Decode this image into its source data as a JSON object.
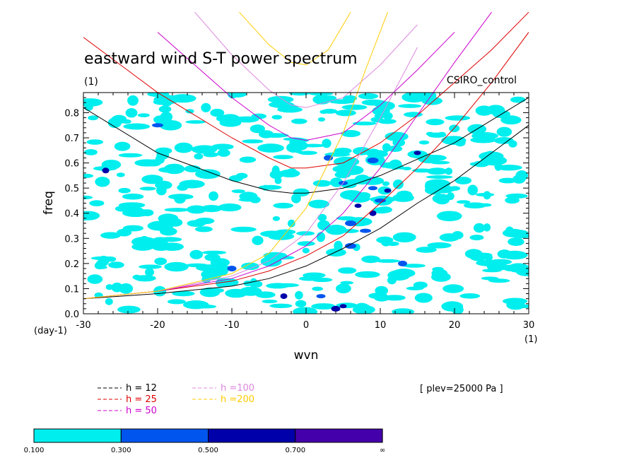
{
  "chart_data": {
    "type": "heatmap",
    "title": "eastward wind S-T power spectrum",
    "subtitle_left": "(1)",
    "subtitle_right": "CSIRO_control",
    "xlabel": "wvn",
    "ylabel": "freq",
    "x_unit_label": "(1)",
    "y_unit_label": "(day-1)",
    "xlim": [
      -30,
      30
    ],
    "ylim": [
      0.0,
      0.88
    ],
    "x_ticks": [
      -30,
      -20,
      -10,
      0,
      10,
      20,
      30
    ],
    "x_tick_labels": [
      "-30",
      "-20",
      "-10",
      "0",
      "10",
      "20",
      "30"
    ],
    "y_ticks": [
      0.0,
      0.1,
      0.2,
      0.3,
      0.4,
      0.5,
      0.6,
      0.7,
      0.8
    ],
    "y_tick_labels": [
      "0.0",
      "0.1",
      "0.2",
      "0.3",
      "0.4",
      "0.5",
      "0.6",
      "0.7",
      "0.8"
    ],
    "plev_label": "[ plev=25000 Pa ]",
    "contour_levels": [
      {
        "label": "0.100",
        "color": "#00eeee"
      },
      {
        "label": "0.300",
        "color": "#0055ee"
      },
      {
        "label": "0.500",
        "color": "#0000aa"
      },
      {
        "label": "0.700",
        "color": "#4400aa"
      },
      {
        "label": "∞",
        "color": ""
      }
    ],
    "series": [
      {
        "name": "h = 12",
        "color": "#000000",
        "h": 12,
        "symmetric": {
          "x": [
            -30,
            -20,
            -10,
            -5,
            -2,
            0,
            5,
            10,
            20,
            30
          ],
          "y": [
            0.82,
            0.64,
            0.53,
            0.49,
            0.48,
            0.48,
            0.5,
            0.55,
            0.68,
            0.86
          ]
        },
        "kelvin": {
          "x": [
            -30,
            -20,
            -10,
            -5,
            0,
            5,
            10,
            15,
            20,
            25,
            30
          ],
          "y": [
            0.06,
            0.08,
            0.11,
            0.14,
            0.19,
            0.26,
            0.34,
            0.44,
            0.53,
            0.64,
            0.75
          ]
        }
      },
      {
        "name": "h = 25",
        "color": "#dd0000",
        "h": 25,
        "symmetric": {
          "x": [
            -30,
            -25,
            -20,
            -10,
            -5,
            -2,
            0,
            5,
            10,
            15,
            20,
            25,
            30
          ],
          "y": [
            1.1,
            0.99,
            0.88,
            0.7,
            0.62,
            0.58,
            0.58,
            0.6,
            0.68,
            0.79,
            0.92,
            1.05,
            1.2
          ]
        },
        "kelvin": {
          "x": [
            -30,
            -20,
            -10,
            -5,
            0,
            5,
            10,
            15,
            20,
            25,
            30
          ],
          "y": [
            0.06,
            0.09,
            0.13,
            0.17,
            0.23,
            0.31,
            0.44,
            0.58,
            0.74,
            0.92,
            1.12
          ]
        }
      },
      {
        "name": "h = 50",
        "color": "#cc00cc",
        "h": 50,
        "symmetric": {
          "x": [
            -20,
            -15,
            -10,
            -5,
            -2,
            0,
            5,
            10,
            15,
            20
          ],
          "y": [
            1.12,
            0.99,
            0.86,
            0.75,
            0.7,
            0.69,
            0.72,
            0.83,
            0.97,
            1.12
          ]
        },
        "kelvin": {
          "x": [
            -30,
            -20,
            -10,
            -5,
            0,
            5,
            10,
            15,
            20,
            25
          ],
          "y": [
            0.06,
            0.09,
            0.14,
            0.19,
            0.27,
            0.4,
            0.58,
            0.79,
            1.0,
            1.2
          ]
        }
      },
      {
        "name": "h =100",
        "color": "#dd88dd",
        "h": 100,
        "symmetric": {
          "x": [
            -15,
            -10,
            -5,
            -2,
            0,
            5,
            10,
            15
          ],
          "y": [
            1.2,
            1.03,
            0.89,
            0.83,
            0.82,
            0.86,
            0.99,
            1.15
          ]
        },
        "kelvin": {
          "x": [
            -30,
            -20,
            -10,
            -5,
            0,
            5,
            10,
            15
          ],
          "y": [
            0.06,
            0.09,
            0.15,
            0.21,
            0.32,
            0.52,
            0.78,
            1.06
          ]
        }
      },
      {
        "name": "h =200",
        "color": "#ffcc00",
        "h": 200,
        "symmetric": {
          "x": [
            -9,
            -5,
            -2,
            0,
            3,
            6
          ],
          "y": [
            1.2,
            1.07,
            1.0,
            0.99,
            1.05,
            1.2
          ]
        },
        "kelvin": {
          "x": [
            -30,
            -20,
            -10,
            -5,
            0,
            3,
            5,
            8,
            11
          ],
          "y": [
            0.06,
            0.09,
            0.16,
            0.24,
            0.42,
            0.6,
            0.72,
            0.97,
            1.2
          ]
        }
      }
    ],
    "grid": false,
    "legend_placement": "below plot, left"
  }
}
